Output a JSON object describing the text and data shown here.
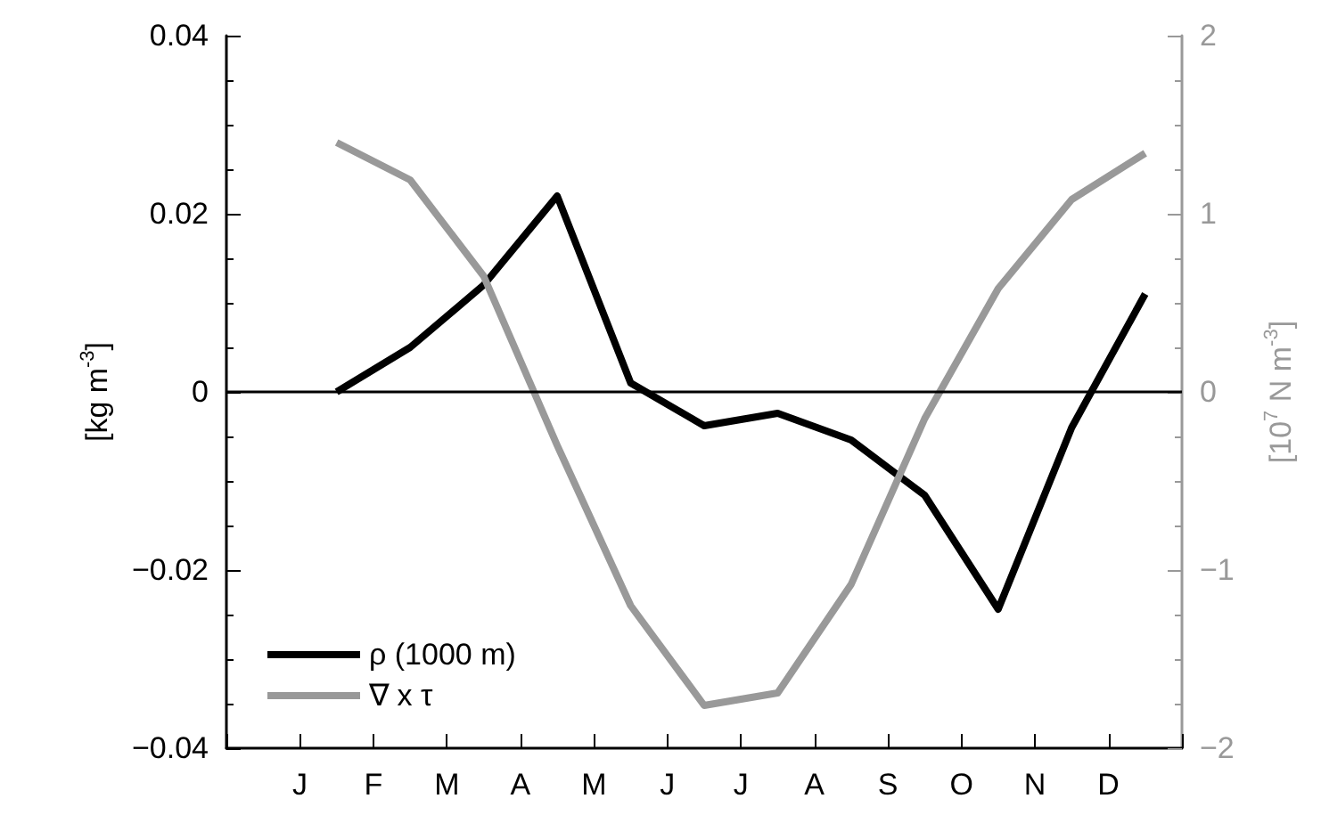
{
  "chart_data": {
    "type": "line",
    "ylabel": "[kg m$^{-3}$]",
    "y2label": "[10$^{7}$ N m$^{-3}$]",
    "categories": [
      null,
      null,
      "J",
      null,
      "F",
      null,
      "M",
      null,
      "A",
      null,
      "M",
      null,
      "J",
      null,
      "J",
      null,
      "A",
      null,
      "S",
      null,
      "O",
      null,
      "N",
      null,
      "D",
      null,
      null
    ],
    "ylim": [
      -0.04,
      0.04
    ],
    "yticks": [
      {
        "value": -0.04,
        "label": "−0.04"
      },
      {
        "value": -0.02,
        "label": "−0.02"
      },
      0,
      0.02,
      0.04
    ],
    "y2lim": [
      -2,
      2
    ],
    "y2ticks": [
      {
        "value": -2,
        "label": "−2"
      },
      {
        "value": -1,
        "label": "−1"
      },
      0,
      1,
      2
    ],
    "series": [
      {
        "name": "ρ (1000 m)",
        "color": "#000000",
        "values": [
          null,
          null,
          null,
          0,
          null,
          0.005,
          null,
          0.012,
          null,
          0.022,
          null,
          0.001,
          null,
          -0.0038,
          null,
          -0.0024,
          null,
          -0.0054,
          null,
          -0.0116,
          null,
          -0.0244,
          null,
          -0.004,
          null,
          0.011,
          null
        ]
      },
      {
        "name": "∇ x τ",
        "color": "#999999",
        "axis": "y2",
        "values": [
          null,
          null,
          null,
          1.4,
          null,
          1.19,
          null,
          0.65,
          null,
          -0.3,
          null,
          -1.2,
          null,
          -1.76,
          null,
          -1.69,
          null,
          -1.08,
          null,
          -0.15,
          null,
          0.58,
          null,
          1.08,
          null,
          1.34,
          null
        ]
      }
    ],
    "ref_lines": [
      {
        "axis": "y",
        "value": 0,
        "color": "#000000"
      }
    ],
    "legend": "bottom left",
    "grid": false,
    "marker": "none",
    "line_style": "solid"
  }
}
